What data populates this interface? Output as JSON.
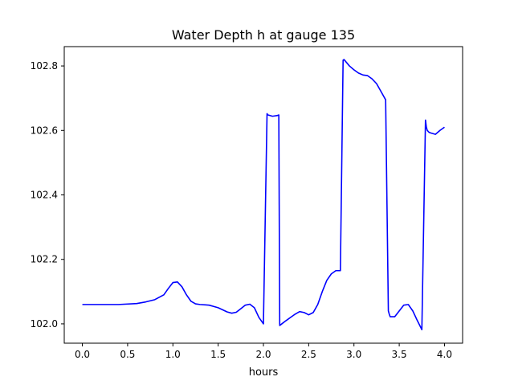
{
  "chart_data": {
    "type": "line",
    "title": "Water Depth h at gauge 135",
    "xlabel": "hours",
    "ylabel": "",
    "xlim": [
      -0.2,
      4.2
    ],
    "ylim": [
      101.94,
      102.86
    ],
    "xticks": [
      0.0,
      0.5,
      1.0,
      1.5,
      2.0,
      2.5,
      3.0,
      3.5,
      4.0
    ],
    "xtick_labels": [
      "0.0",
      "0.5",
      "1.0",
      "1.5",
      "2.0",
      "2.5",
      "3.0",
      "3.5",
      "4.0"
    ],
    "yticks": [
      102.0,
      102.2,
      102.4,
      102.6,
      102.8
    ],
    "ytick_labels": [
      "102.0",
      "102.2",
      "102.4",
      "102.6",
      "102.8"
    ],
    "grid": false,
    "legend": "none",
    "series": [
      {
        "color": "#0000ff",
        "x": [
          0.0,
          0.2,
          0.4,
          0.6,
          0.7,
          0.8,
          0.9,
          0.95,
          1.0,
          1.05,
          1.1,
          1.15,
          1.2,
          1.25,
          1.3,
          1.4,
          1.5,
          1.6,
          1.65,
          1.7,
          1.75,
          1.8,
          1.85,
          1.9,
          1.95,
          2.0,
          2.04,
          2.05,
          2.1,
          2.15,
          2.17,
          2.18,
          2.25,
          2.3,
          2.35,
          2.4,
          2.45,
          2.5,
          2.55,
          2.6,
          2.65,
          2.7,
          2.75,
          2.8,
          2.85,
          2.88,
          2.89,
          2.92,
          2.95,
          3.0,
          3.05,
          3.1,
          3.15,
          3.2,
          3.25,
          3.3,
          3.35,
          3.38,
          3.39,
          3.4,
          3.45,
          3.5,
          3.55,
          3.6,
          3.65,
          3.7,
          3.75,
          3.79,
          3.8,
          3.81,
          3.83,
          3.85,
          3.9,
          3.95,
          4.0
        ],
        "y": [
          102.06,
          102.06,
          102.06,
          102.063,
          102.068,
          102.075,
          102.09,
          102.11,
          102.128,
          102.13,
          102.115,
          102.09,
          102.07,
          102.062,
          102.06,
          102.058,
          102.05,
          102.037,
          102.033,
          102.036,
          102.047,
          102.058,
          102.061,
          102.05,
          102.02,
          102.0,
          102.652,
          102.648,
          102.644,
          102.646,
          102.648,
          101.995,
          102.01,
          102.02,
          102.03,
          102.038,
          102.035,
          102.028,
          102.035,
          102.06,
          102.1,
          102.135,
          102.155,
          102.165,
          102.165,
          102.818,
          102.82,
          102.81,
          102.8,
          102.788,
          102.778,
          102.772,
          102.77,
          102.76,
          102.745,
          102.72,
          102.695,
          102.04,
          102.03,
          102.022,
          102.022,
          102.04,
          102.058,
          102.06,
          102.04,
          102.01,
          101.982,
          102.632,
          102.61,
          102.6,
          102.594,
          102.592,
          102.588,
          102.6,
          102.61
        ]
      }
    ]
  }
}
